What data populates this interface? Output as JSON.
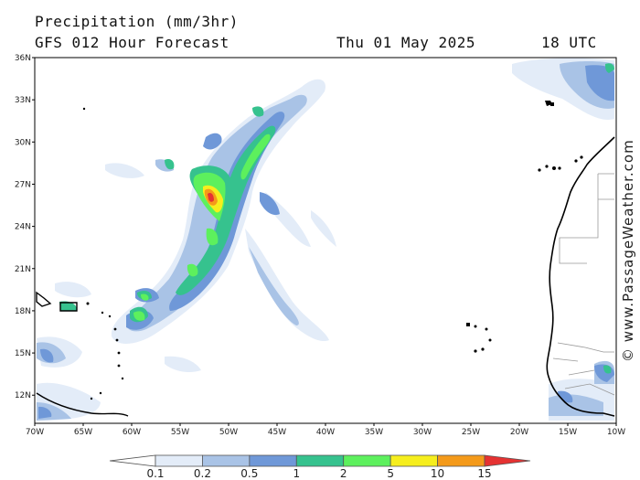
{
  "header": {
    "title": "Precipitation (mm/3hr)",
    "subtitle": "GFS 012 Hour Forecast",
    "date": "Thu 01 May 2025",
    "time": "18 UTC"
  },
  "credit": "© www.PassageWeather.com",
  "map": {
    "lat_range": [
      10,
      36
    ],
    "lon_range": [
      -70,
      -10
    ],
    "lat_ticks": [
      "36N",
      "33N",
      "30N",
      "27N",
      "24N",
      "21N",
      "18N",
      "15N",
      "12N"
    ],
    "lon_ticks": [
      "70W",
      "65W",
      "60W",
      "55W",
      "50W",
      "45W",
      "40W",
      "35W",
      "30W",
      "25W",
      "20W",
      "15W",
      "10W"
    ]
  },
  "colorbar": {
    "labels": [
      "0.1",
      "0.2",
      "0.5",
      "1",
      "2",
      "5",
      "10",
      "15"
    ],
    "colors": [
      "#ffffff",
      "#e3ecf8",
      "#a9c3e6",
      "#6f98d8",
      "#36c28e",
      "#5df05d",
      "#f6ee1d",
      "#f49a1a",
      "#e53232"
    ]
  },
  "icons": [
    "copyright-icon"
  ]
}
